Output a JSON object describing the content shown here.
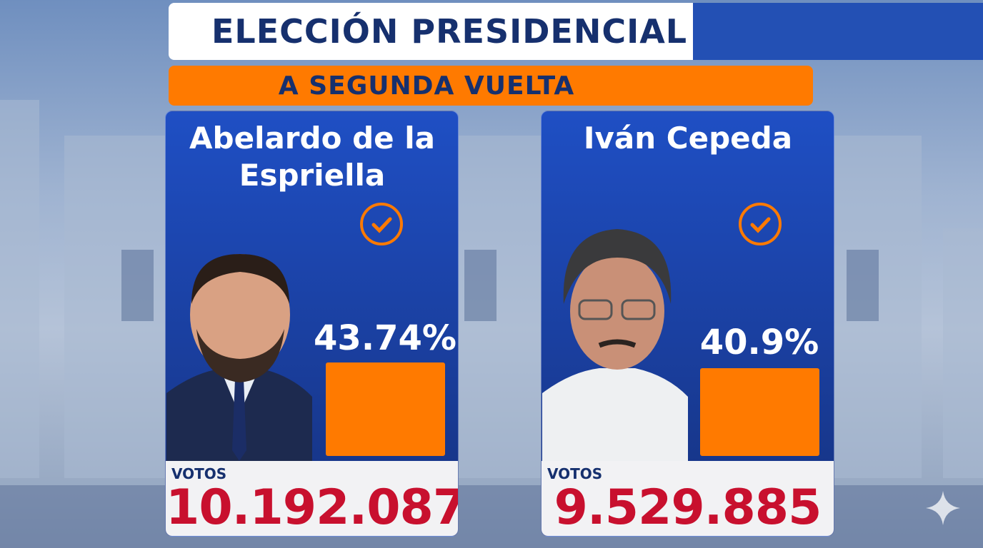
{
  "header": {
    "title": "ELECCIÓN PRESIDENCIAL",
    "subtitle": "A SEGUNDA VUELTA"
  },
  "candidates": [
    {
      "name": "Abelardo de la Espriella",
      "percent": "43.74%",
      "votes_label": "VOTOS",
      "votes": "10.192.087"
    },
    {
      "name": "Iván Cepeda",
      "percent": "40.9%",
      "votes_label": "VOTOS",
      "votes": "9.529.885"
    }
  ]
}
